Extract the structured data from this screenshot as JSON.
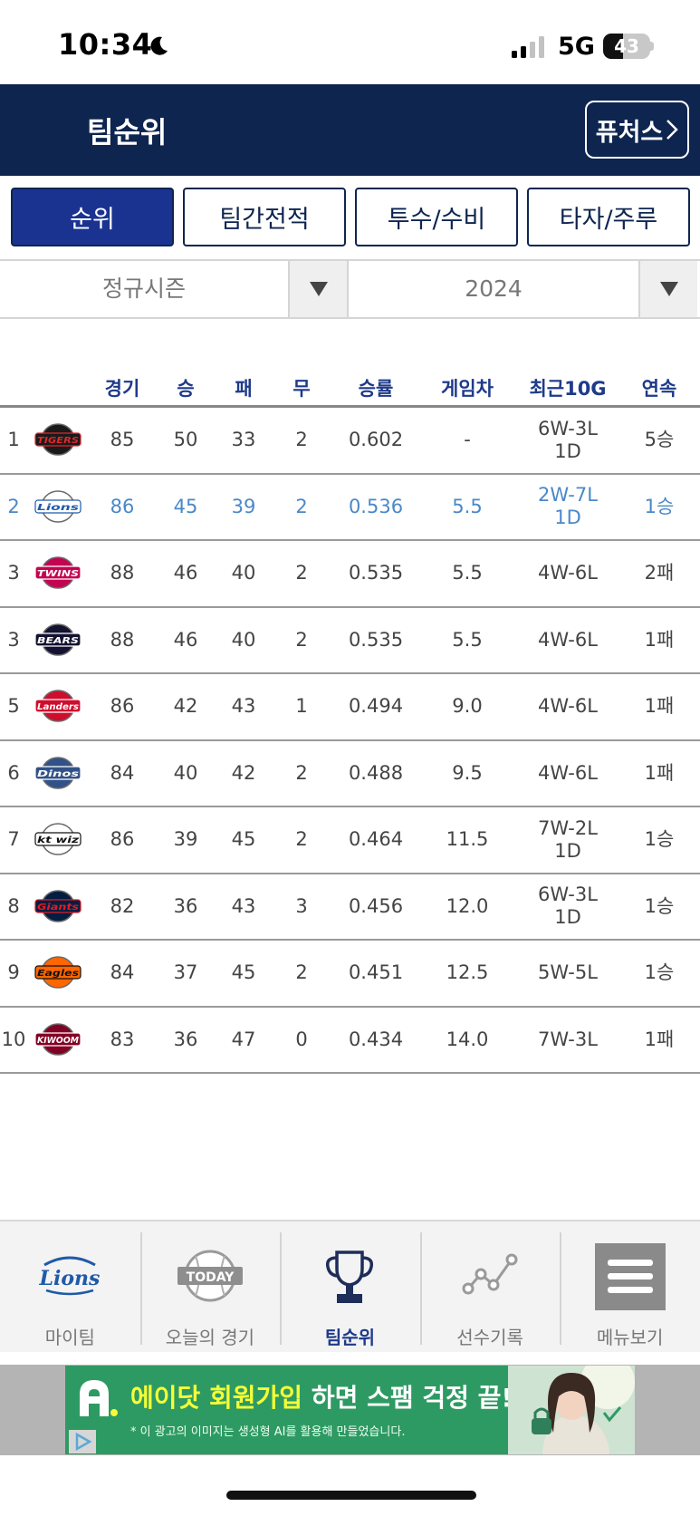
{
  "status_bar": {
    "time": "10:34",
    "network": "5G",
    "battery": "43",
    "battery_level": 0.43
  },
  "header": {
    "title": "팀순위",
    "futures_label": "퓨처스"
  },
  "tabs": [
    {
      "label": "순위",
      "active": true
    },
    {
      "label": "팀간전적",
      "active": false
    },
    {
      "label": "투수/수비",
      "active": false
    },
    {
      "label": "타자/주루",
      "active": false
    }
  ],
  "filters": {
    "season": "정규시즌",
    "year": "2024"
  },
  "table": {
    "columns": {
      "games": "경기",
      "wins": "승",
      "losses": "패",
      "draws": "무",
      "pct": "승률",
      "gb": "게임차",
      "last10": "최근10G",
      "streak": "연속"
    },
    "rows": [
      {
        "rank": "1",
        "team": "tigers",
        "logo_text": "TIGERS",
        "games": "85",
        "wins": "50",
        "losses": "33",
        "draws": "2",
        "pct": "0.602",
        "gb": "-",
        "last10": "6W-3L 1D",
        "streak": "5승",
        "highlight": false,
        "colors": {
          "bg": "#1a1a1a",
          "fg": "#e0262c"
        }
      },
      {
        "rank": "2",
        "team": "lions",
        "logo_text": "Lions",
        "games": "86",
        "wins": "45",
        "losses": "39",
        "draws": "2",
        "pct": "0.536",
        "gb": "5.5",
        "last10": "2W-7L 1D",
        "streak": "1승",
        "highlight": true,
        "colors": {
          "bg": "#ffffff",
          "fg": "#1f5aa8"
        }
      },
      {
        "rank": "3",
        "team": "twins",
        "logo_text": "TWINS",
        "games": "88",
        "wins": "46",
        "losses": "40",
        "draws": "2",
        "pct": "0.535",
        "gb": "5.5",
        "last10": "4W-6L",
        "streak": "2패",
        "highlight": false,
        "colors": {
          "bg": "#c30452",
          "fg": "#ffffff"
        }
      },
      {
        "rank": "3",
        "team": "bears",
        "logo_text": "BEARS",
        "games": "88",
        "wins": "46",
        "losses": "40",
        "draws": "2",
        "pct": "0.535",
        "gb": "5.5",
        "last10": "4W-6L",
        "streak": "1패",
        "highlight": false,
        "colors": {
          "bg": "#131230",
          "fg": "#ffffff"
        }
      },
      {
        "rank": "5",
        "team": "landers",
        "logo_text": "Landers",
        "games": "86",
        "wins": "42",
        "losses": "43",
        "draws": "1",
        "pct": "0.494",
        "gb": "9.0",
        "last10": "4W-6L",
        "streak": "1패",
        "highlight": false,
        "colors": {
          "bg": "#ce0e2d",
          "fg": "#ffffff"
        }
      },
      {
        "rank": "6",
        "team": "dinos",
        "logo_text": "Dinos",
        "games": "84",
        "wins": "40",
        "losses": "42",
        "draws": "2",
        "pct": "0.488",
        "gb": "9.5",
        "last10": "4W-6L",
        "streak": "1패",
        "highlight": false,
        "colors": {
          "bg": "#315288",
          "fg": "#ffffff"
        }
      },
      {
        "rank": "7",
        "team": "ktwiz",
        "logo_text": "kt wiz",
        "games": "86",
        "wins": "39",
        "losses": "45",
        "draws": "2",
        "pct": "0.464",
        "gb": "11.5",
        "last10": "7W-2L 1D",
        "streak": "1승",
        "highlight": false,
        "colors": {
          "bg": "#ffffff",
          "fg": "#111111"
        }
      },
      {
        "rank": "8",
        "team": "giants",
        "logo_text": "Giants",
        "games": "82",
        "wins": "36",
        "losses": "43",
        "draws": "3",
        "pct": "0.456",
        "gb": "12.0",
        "last10": "6W-3L 1D",
        "streak": "1승",
        "highlight": false,
        "colors": {
          "bg": "#041e42",
          "fg": "#e31b23"
        }
      },
      {
        "rank": "9",
        "team": "eagles",
        "logo_text": "Eagles",
        "games": "84",
        "wins": "37",
        "losses": "45",
        "draws": "2",
        "pct": "0.451",
        "gb": "12.5",
        "last10": "5W-5L",
        "streak": "1승",
        "highlight": false,
        "colors": {
          "bg": "#ff6600",
          "fg": "#111111"
        }
      },
      {
        "rank": "10",
        "team": "kiwoom",
        "logo_text": "KIWOOM",
        "games": "83",
        "wins": "36",
        "losses": "47",
        "draws": "0",
        "pct": "0.434",
        "gb": "14.0",
        "last10": "7W-3L",
        "streak": "1패",
        "highlight": false,
        "colors": {
          "bg": "#820024",
          "fg": "#ffffff"
        }
      }
    ]
  },
  "bottom_nav": [
    {
      "label": "마이팀",
      "icon": "lions-logo-icon",
      "active": false,
      "logo_text": "Lions"
    },
    {
      "label": "오늘의 경기",
      "icon": "today-ball-icon",
      "active": false,
      "logo_text": "TODAY"
    },
    {
      "label": "팀순위",
      "icon": "trophy-icon",
      "active": true
    },
    {
      "label": "선수기록",
      "icon": "line-chart-icon",
      "active": false
    },
    {
      "label": "메뉴보기",
      "icon": "hamburger-menu-icon",
      "active": false
    }
  ],
  "ad": {
    "headline_highlight": "에이닷 회원가입",
    "headline_rest": " 하면 스팸 걱정 끝!",
    "note": "* 이 광고의 이미지는 생성형 AI를 활용해 만들었습니다.",
    "colors": {
      "bg": "#2e9a63",
      "highlight": "#f4ff36"
    }
  },
  "theme": {
    "header_bg": "#0e2550",
    "active_tab_bg": "#1a3391",
    "column_header": "#1e3a8a",
    "highlight_row": "#4a88c8"
  }
}
